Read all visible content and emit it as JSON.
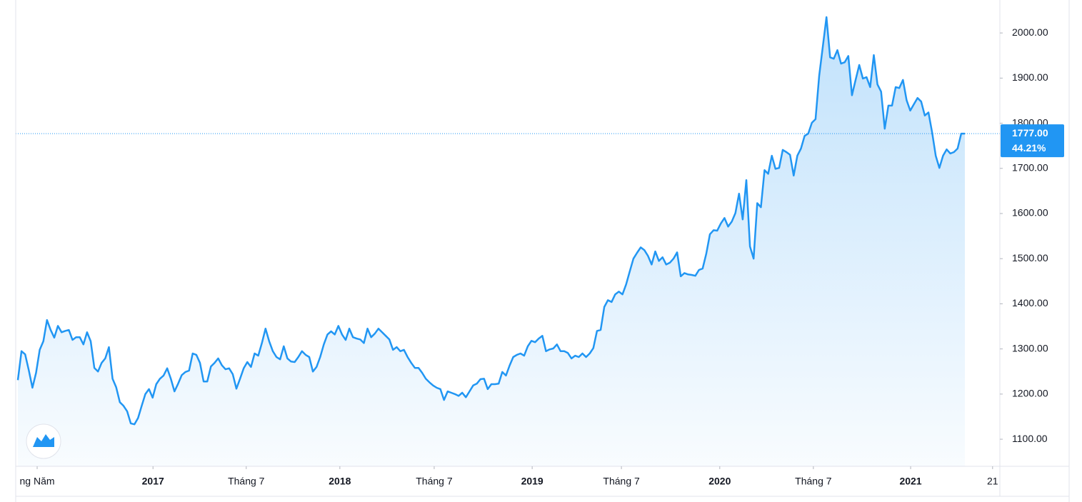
{
  "chart_data": {
    "type": "area",
    "values": [
      1231,
      1295,
      1288,
      1253,
      1214,
      1247,
      1298,
      1317,
      1364,
      1342,
      1325,
      1351,
      1337,
      1340,
      1342,
      1320,
      1326,
      1326,
      1310,
      1337,
      1317,
      1258,
      1250,
      1269,
      1279,
      1304,
      1234,
      1215,
      1182,
      1174,
      1162,
      1135,
      1133,
      1147,
      1174,
      1200,
      1211,
      1192,
      1222,
      1234,
      1241,
      1257,
      1234,
      1206,
      1223,
      1242,
      1249,
      1252,
      1290,
      1287,
      1269,
      1228,
      1228,
      1261,
      1269,
      1279,
      1264,
      1255,
      1257,
      1244,
      1212,
      1234,
      1257,
      1271,
      1260,
      1290,
      1285,
      1313,
      1345,
      1317,
      1295,
      1282,
      1277,
      1306,
      1279,
      1272,
      1271,
      1282,
      1295,
      1287,
      1282,
      1250,
      1260,
      1282,
      1310,
      1332,
      1339,
      1332,
      1351,
      1332,
      1320,
      1345,
      1326,
      1323,
      1321,
      1313,
      1345,
      1326,
      1334,
      1345,
      1337,
      1329,
      1321,
      1298,
      1304,
      1295,
      1298,
      1282,
      1269,
      1258,
      1258,
      1247,
      1234,
      1226,
      1219,
      1214,
      1211,
      1187,
      1206,
      1203,
      1200,
      1196,
      1203,
      1193,
      1206,
      1219,
      1223,
      1233,
      1234,
      1211,
      1222,
      1222,
      1223,
      1249,
      1241,
      1263,
      1282,
      1287,
      1290,
      1285,
      1306,
      1318,
      1315,
      1323,
      1329,
      1295,
      1299,
      1301,
      1310,
      1295,
      1295,
      1291,
      1279,
      1285,
      1282,
      1290,
      1282,
      1290,
      1302,
      1340,
      1342,
      1393,
      1408,
      1404,
      1421,
      1427,
      1421,
      1443,
      1472,
      1500,
      1513,
      1525,
      1519,
      1506,
      1487,
      1516,
      1495,
      1503,
      1487,
      1491,
      1500,
      1514,
      1461,
      1468,
      1465,
      1464,
      1462,
      1475,
      1478,
      1511,
      1554,
      1563,
      1562,
      1578,
      1590,
      1571,
      1582,
      1601,
      1644,
      1587,
      1674,
      1527,
      1500,
      1623,
      1614,
      1696,
      1688,
      1728,
      1699,
      1701,
      1741,
      1736,
      1730,
      1684,
      1728,
      1744,
      1772,
      1777,
      1801,
      1809,
      1905,
      1970,
      2035,
      1946,
      1943,
      1962,
      1932,
      1935,
      1949,
      1862,
      1896,
      1929,
      1899,
      1902,
      1880,
      1951,
      1886,
      1870,
      1788,
      1839,
      1839,
      1880,
      1878,
      1896,
      1851,
      1828,
      1842,
      1856,
      1848,
      1817,
      1824,
      1780,
      1728,
      1701,
      1728,
      1742,
      1733,
      1736,
      1744,
      1777,
      1777
    ],
    "color": "#2196f3",
    "xlim": [
      0,
      269.6
    ],
    "xticks": [
      {
        "value": 5.3,
        "label": "ng Năm"
      },
      {
        "value": 37.1,
        "label": "2017"
      },
      {
        "value": 62.7,
        "label": "Tháng 7"
      },
      {
        "value": 88.4,
        "label": "2018"
      },
      {
        "value": 114.3,
        "label": "Tháng 7"
      },
      {
        "value": 141.2,
        "label": "2019"
      },
      {
        "value": 165.7,
        "label": "Tháng 7"
      },
      {
        "value": 192.7,
        "label": "2020"
      },
      {
        "value": 218.4,
        "label": "Tháng 7"
      },
      {
        "value": 245.1,
        "label": "2021"
      },
      {
        "value": 267.6,
        "label": "21"
      }
    ],
    "ylim": [
      1040,
      2073
    ],
    "yticks": [
      {
        "value": 1100,
        "label": "1100.00"
      },
      {
        "value": 1200,
        "label": "1200.00"
      },
      {
        "value": 1300,
        "label": "1300.00"
      },
      {
        "value": 1400,
        "label": "1400.00"
      },
      {
        "value": 1500,
        "label": "1500.00"
      },
      {
        "value": 1600,
        "label": "1600.00"
      },
      {
        "value": 1700,
        "label": "1700.00"
      },
      {
        "value": 1800,
        "label": "1800.00"
      },
      {
        "value": 1900,
        "label": "1900.00"
      },
      {
        "value": 2000,
        "label": "2000.00"
      }
    ],
    "last_price": {
      "value": 1777,
      "label": "1777.00"
    },
    "change_label": "44.21%"
  }
}
